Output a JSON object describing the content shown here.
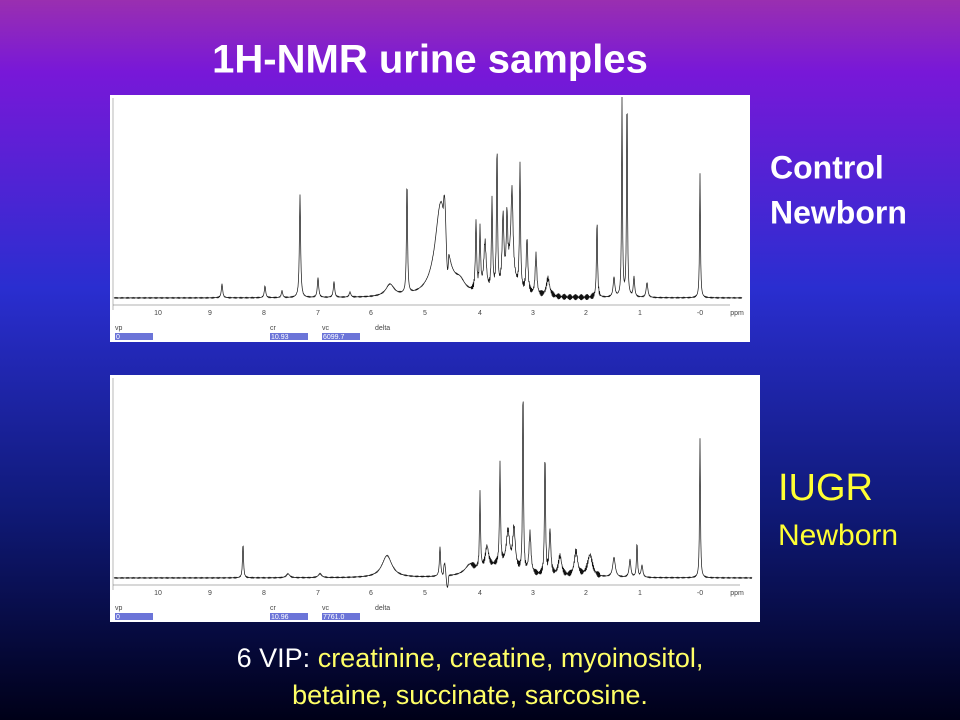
{
  "title": "1H-NMR urine samples",
  "panels": [
    {
      "label_lines": [
        "Control",
        "Newborn"
      ],
      "axis_labels": [
        "10",
        "9",
        "8",
        "7",
        "6",
        "5",
        "4",
        "3",
        "2",
        "1",
        "-0",
        "ppm"
      ],
      "fields": [
        {
          "name": "vp",
          "value": "0"
        },
        {
          "name": "cr",
          "value": "10.93"
        },
        {
          "name": "vc",
          "value": "6099.7"
        }
      ],
      "delta_label": "delta"
    },
    {
      "label_lines": [
        "IUGR",
        "Newborn"
      ],
      "axis_labels": [
        "10",
        "9",
        "8",
        "7",
        "6",
        "5",
        "4",
        "3",
        "2",
        "1",
        "-0",
        "ppm"
      ],
      "fields": [
        {
          "name": "vp",
          "value": "0"
        },
        {
          "name": "cr",
          "value": "10.96"
        },
        {
          "name": "vc",
          "value": "7761.0"
        }
      ],
      "delta_label": "delta"
    }
  ],
  "footer": {
    "prefix": "6 VIP:",
    "line1": "creatinine, creatine, myoinositol,",
    "line2": "betaine, succinate, sarcosine."
  }
}
